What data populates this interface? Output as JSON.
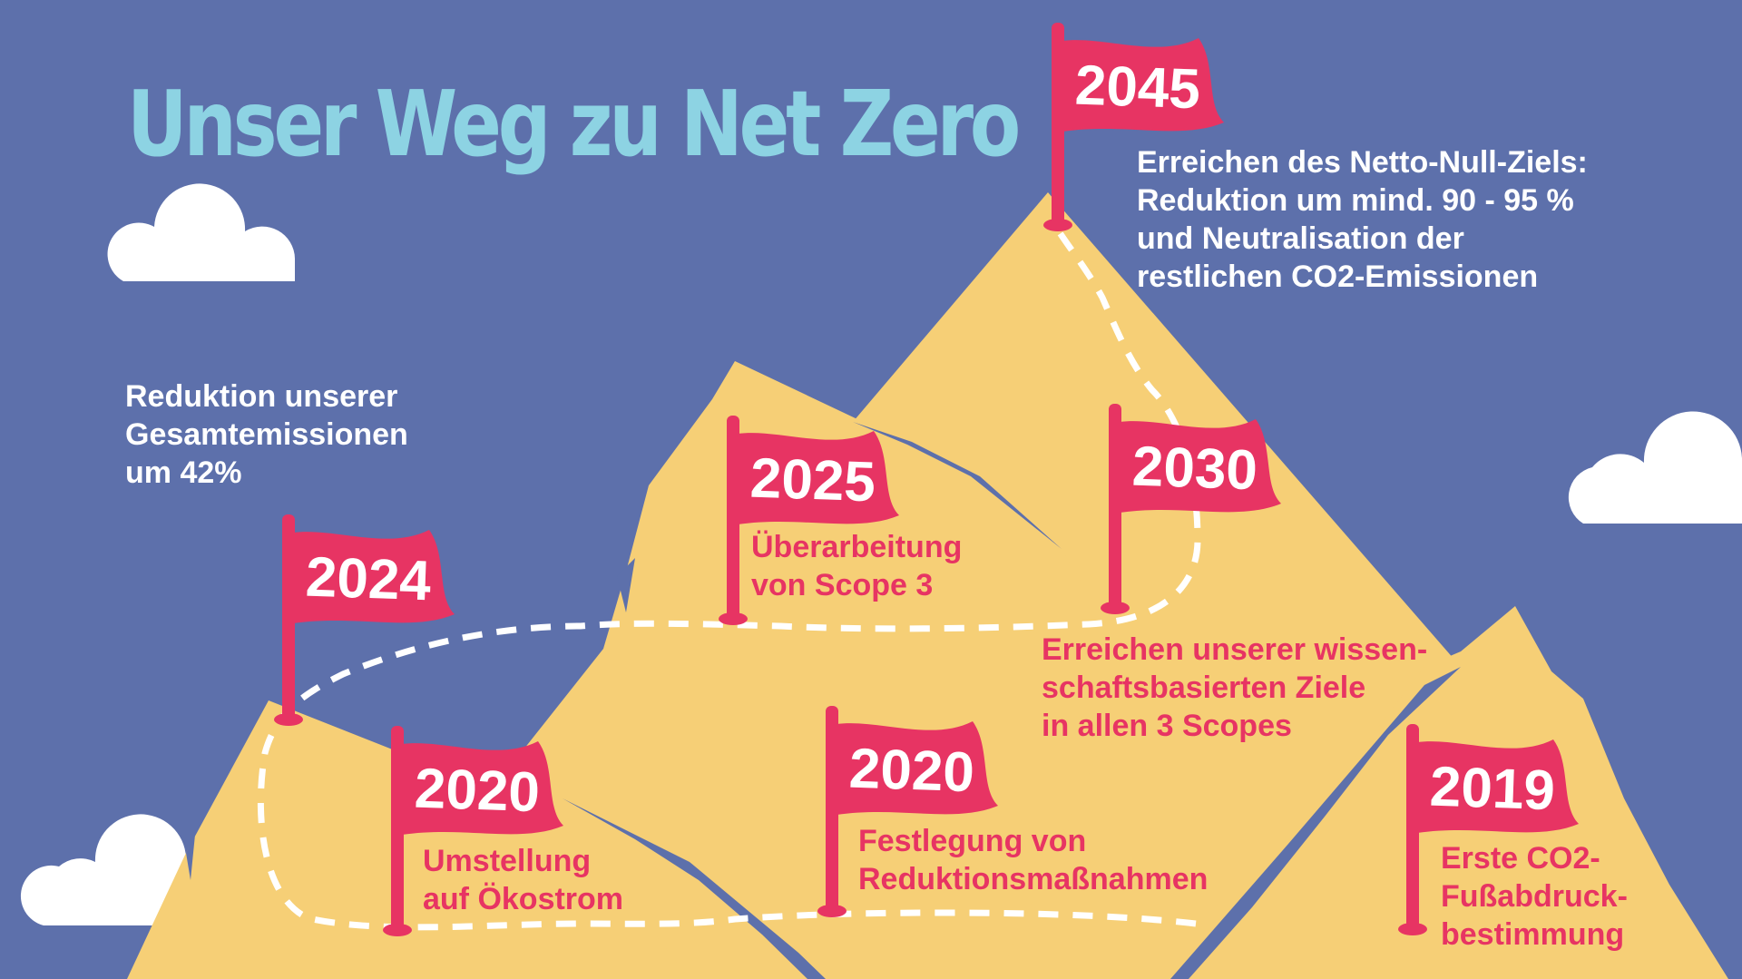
{
  "title": "Unser Weg zu Net Zero",
  "colors": {
    "background": "#5d70ab",
    "mountain": "#f6cf76",
    "shadow": "#5d70ab",
    "flag": "#e73463",
    "title": "#8dd3e3",
    "path": "#ffffff",
    "cloud": "#ffffff"
  },
  "milestones": [
    {
      "year": "2045",
      "lines": [
        "Erreichen des Netto-Null-Ziels:",
        "Reduktion um mind. 90 - 95 %",
        "und Neutralisation der",
        "restlichen CO2-Emissionen"
      ]
    },
    {
      "year": "2030",
      "lines": [
        "Erreichen unserer wissen-",
        "schaftsbasierten Ziele",
        "in allen 3 Scopes"
      ]
    },
    {
      "year": "2025",
      "lines": [
        "Überarbeitung",
        "von Scope 3"
      ]
    },
    {
      "year": "2024",
      "lines": [
        "Reduktion unserer",
        "Gesamtemissionen",
        "um 42%"
      ]
    },
    {
      "year": "2020",
      "lines": [
        "Umstellung",
        "auf Ökostrom"
      ]
    },
    {
      "year": "2020",
      "lines": [
        "Festlegung von",
        "Reduktionsmaßnahmen"
      ]
    },
    {
      "year": "2019",
      "lines": [
        "Erste CO2-",
        "Fußabdruck-",
        "bestimmung"
      ]
    }
  ]
}
